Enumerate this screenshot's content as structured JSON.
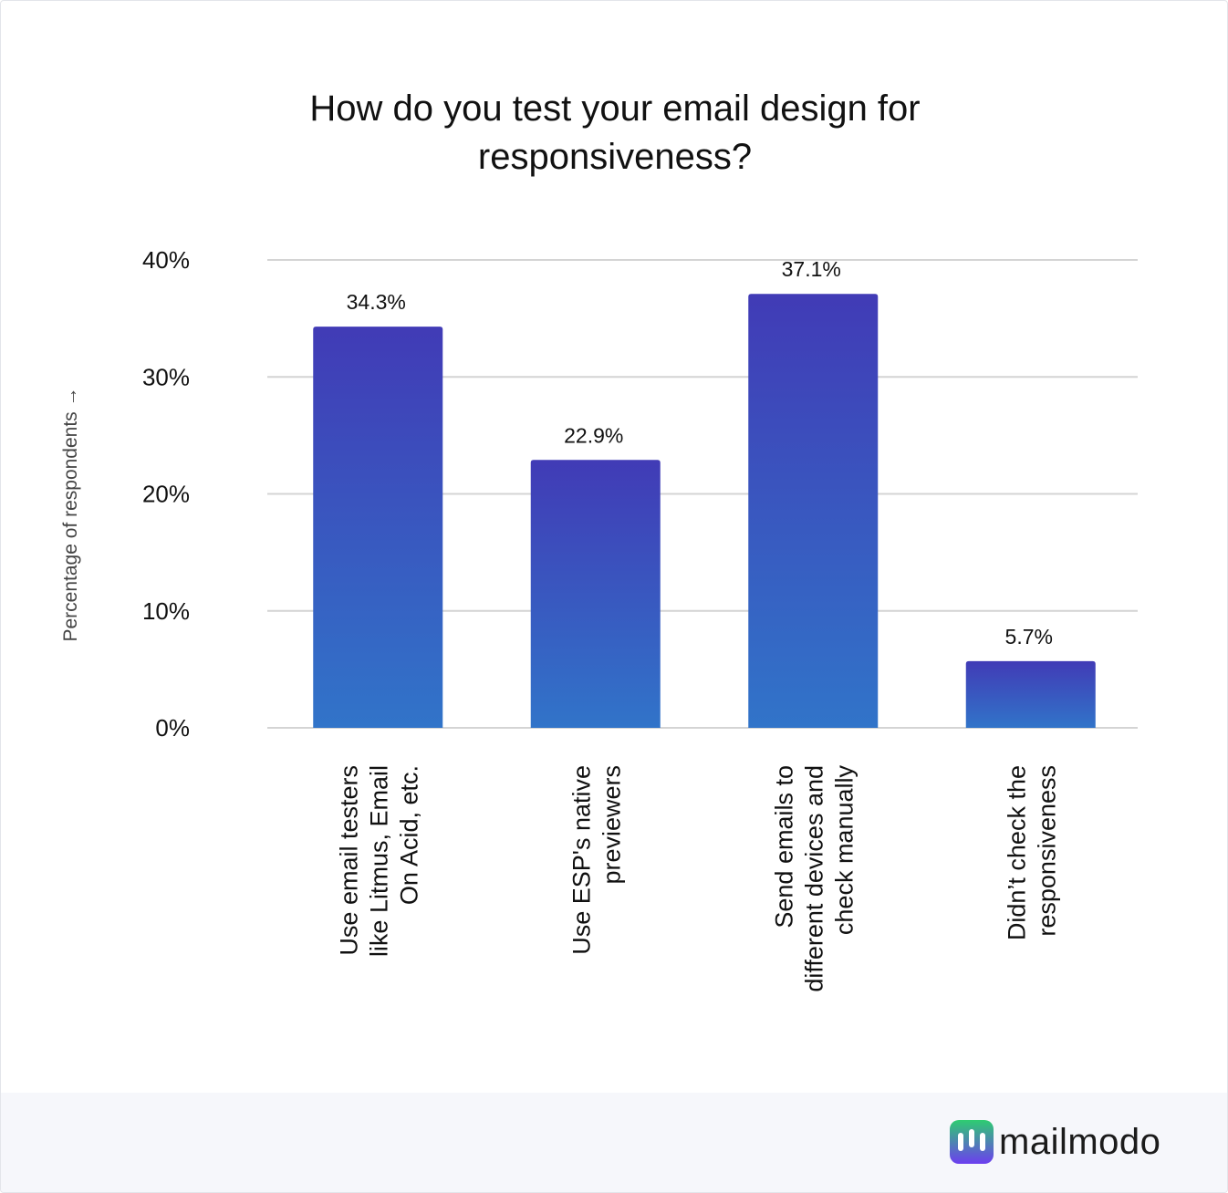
{
  "chart_data": {
    "type": "bar",
    "title": "How do you test your email design for responsiveness?",
    "title_lines": [
      "How do you test your email design for",
      "responsiveness?"
    ],
    "ylabel": "Percentage of respondents →",
    "xlabel": "",
    "ylim": [
      0,
      40
    ],
    "yticks": [
      0,
      10,
      20,
      30,
      40
    ],
    "ytick_labels": [
      "0%",
      "10%",
      "20%",
      "30%",
      "40%"
    ],
    "grid": true,
    "categories": [
      "Use email testers like Litmus, Email On Acid, etc.",
      "Use ESP's native previewers",
      "Send emails to different devices and check manually",
      "Didn’t check the responsiveness"
    ],
    "category_lines": [
      [
        "Use email testers",
        "like Litmus, Email",
        "On Acid, etc."
      ],
      [
        "Use ESP's native",
        "previewers"
      ],
      [
        "Send emails to",
        "different devices and",
        "check manually"
      ],
      [
        "Didn’t check the",
        "responsiveness"
      ]
    ],
    "values": [
      34.3,
      22.9,
      37.1,
      5.7
    ],
    "value_labels": [
      "34.3%",
      "22.9%",
      "37.1%",
      "5.7%"
    ],
    "colors": {
      "bar_top": "#413bb6",
      "bar_bottom": "#3174c9",
      "grid": "#d4d4d4",
      "text": "#111111",
      "axis_title": "#444444"
    }
  },
  "brand": {
    "name": "mailmodo",
    "icon": "mailmodo-logo-icon",
    "colors": {
      "green": "#2ecc71",
      "purple": "#6c3ef0"
    }
  }
}
